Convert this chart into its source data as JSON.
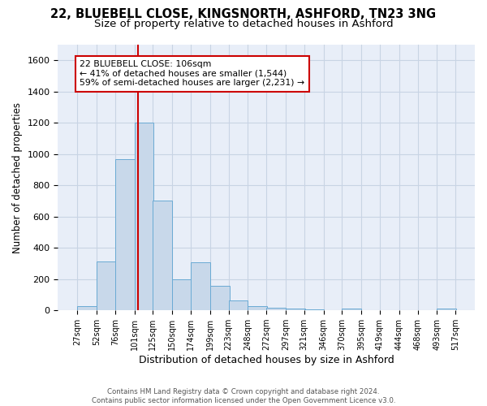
{
  "title_line1": "22, BLUEBELL CLOSE, KINGSNORTH, ASHFORD, TN23 3NG",
  "title_line2": "Size of property relative to detached houses in Ashford",
  "xlabel": "Distribution of detached houses by size in Ashford",
  "ylabel": "Number of detached properties",
  "bar_color": "#c8d8ea",
  "bar_edge_color": "#6aaad4",
  "vline_color": "#cc0000",
  "vline_x": 106,
  "annotation_text": "22 BLUEBELL CLOSE: 106sqm\n← 41% of detached houses are smaller (1,544)\n59% of semi-detached houses are larger (2,231) →",
  "annotation_box_color": "#ffffff",
  "annotation_box_edge": "#cc0000",
  "bins": [
    27,
    52,
    76,
    101,
    125,
    150,
    174,
    199,
    223,
    248,
    272,
    297,
    321,
    346,
    370,
    395,
    419,
    444,
    468,
    493,
    517
  ],
  "counts": [
    25,
    315,
    970,
    1200,
    700,
    200,
    310,
    155,
    65,
    25,
    15,
    10,
    5,
    0,
    10,
    0,
    0,
    0,
    0,
    10
  ],
  "ylim": [
    0,
    1700
  ],
  "yticks": [
    0,
    200,
    400,
    600,
    800,
    1000,
    1200,
    1400,
    1600
  ],
  "xlim_left": 2,
  "xlim_right": 542,
  "grid_color": "#c8d4e4",
  "background_color": "#e8eef8",
  "footer_text": "Contains HM Land Registry data © Crown copyright and database right 2024.\nContains public sector information licensed under the Open Government Licence v3.0.",
  "title_fontsize": 10.5,
  "subtitle_fontsize": 9.5,
  "tick_labels": [
    "27sqm",
    "52sqm",
    "76sqm",
    "101sqm",
    "125sqm",
    "150sqm",
    "174sqm",
    "199sqm",
    "223sqm",
    "248sqm",
    "272sqm",
    "297sqm",
    "321sqm",
    "346sqm",
    "370sqm",
    "395sqm",
    "419sqm",
    "444sqm",
    "468sqm",
    "493sqm",
    "517sqm"
  ]
}
